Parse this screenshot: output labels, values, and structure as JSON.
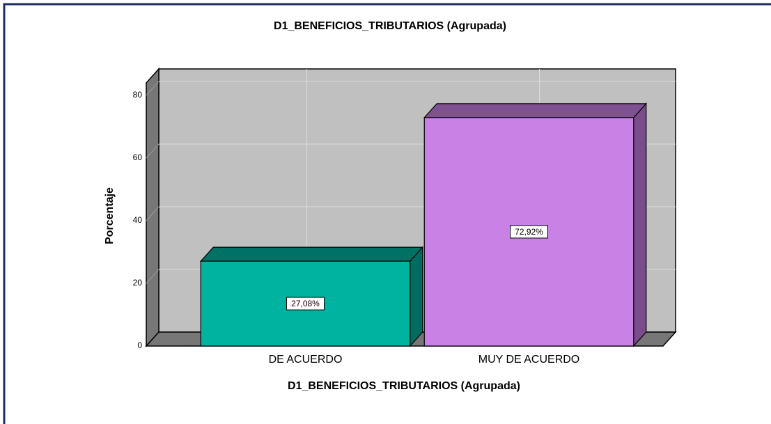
{
  "chart_data": {
    "type": "bar",
    "title": "D1_BENEFICIOS_TRIBUTARIOS (Agrupada)",
    "x_label": "D1_BENEFICIOS_TRIBUTARIOS (Agrupada)",
    "y_label": "Porcentaje",
    "categories": [
      "DE ACUERDO",
      "MUY DE ACUERDO"
    ],
    "values": [
      27.08,
      72.92
    ],
    "value_labels": [
      "27,08%",
      "72,92%"
    ],
    "colors": [
      "#00b3a0",
      "#c981e6"
    ],
    "ylim": [
      0,
      84
    ],
    "yticks": [
      0,
      20,
      40,
      60,
      80
    ],
    "grid": true
  }
}
